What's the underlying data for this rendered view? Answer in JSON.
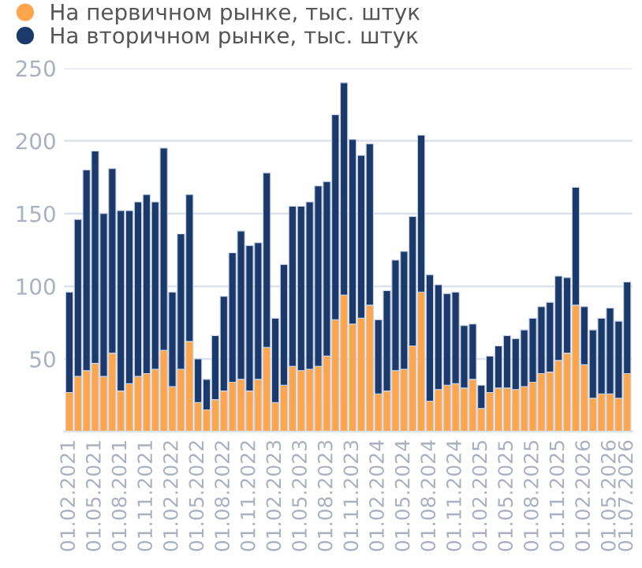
{
  "chart_data": {
    "type": "bar",
    "stacked": true,
    "categories": [
      "01.02.2021",
      null,
      null,
      "01.05.2021",
      null,
      null,
      "01.08.2021",
      null,
      null,
      "01.11.2021",
      null,
      null,
      "01.02.2022",
      null,
      null,
      "01.05.2022",
      null,
      null,
      "01.08.2022",
      null,
      null,
      "01.11.2022",
      null,
      null,
      "01.02.2023",
      null,
      null,
      "01.05.2023",
      null,
      null,
      "01.08.2023",
      null,
      null,
      "01.11.2023",
      null,
      null,
      "01.02.2024",
      null,
      null,
      "01.05.2024",
      null,
      null,
      "01.08.2024",
      null,
      null,
      "01.11.2024",
      null,
      null,
      "01.02.2025",
      null,
      null,
      "01.05.2025",
      null,
      null,
      "01.08.2025",
      null,
      null,
      "01.11.2025",
      null,
      null,
      "01.02.2026",
      null,
      null,
      "01.05.2026",
      null,
      "01.07.2026"
    ],
    "series": [
      {
        "name": "На первичном рынке, тыс. штук",
        "color": "#ffa64d",
        "values": [
          27,
          38,
          42,
          47,
          38,
          54,
          28,
          33,
          38,
          40,
          43,
          56,
          31,
          43,
          62,
          20,
          15,
          22,
          28,
          34,
          36,
          28,
          36,
          58,
          20,
          32,
          45,
          42,
          43,
          45,
          52,
          77,
          94,
          74,
          78,
          87,
          26,
          28,
          42,
          43,
          59,
          96,
          21,
          29,
          32,
          33,
          30,
          36,
          16,
          27,
          30,
          30,
          29,
          31,
          34,
          40,
          41,
          49,
          54,
          87,
          46,
          23,
          26,
          26,
          23,
          40
        ]
      },
      {
        "name": "На вторичном рынке, тыс. штук",
        "color": "#1b3a6b",
        "values": [
          69,
          108,
          138,
          146,
          112,
          127,
          124,
          119,
          120,
          123,
          115,
          139,
          65,
          93,
          101,
          30,
          21,
          44,
          65,
          89,
          102,
          100,
          94,
          120,
          58,
          83,
          110,
          113,
          115,
          124,
          120,
          141,
          146,
          127,
          112,
          111,
          51,
          69,
          76,
          81,
          89,
          108,
          87,
          72,
          63,
          63,
          43,
          38,
          16,
          25,
          29,
          36,
          35,
          39,
          44,
          46,
          48,
          58,
          52,
          81,
          40,
          47,
          52,
          59,
          53,
          63
        ]
      }
    ],
    "ylim": [
      0,
      250
    ],
    "yticks": [
      50,
      100,
      150,
      200,
      250
    ],
    "grid": "y",
    "legend": "top left"
  }
}
